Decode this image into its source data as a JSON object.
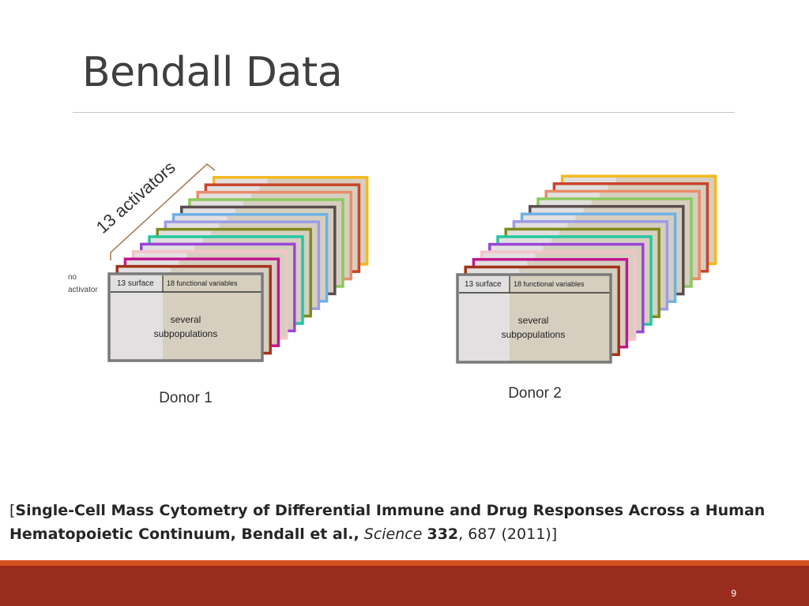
{
  "slide": {
    "title": "Bendall Data",
    "page_number": "9"
  },
  "diagram": {
    "activators_label": "13 activators",
    "no_activator_line1": "no",
    "no_activator_line2": "activator",
    "donor1": {
      "caption": "Donor 1",
      "surface_label": "13 surface",
      "functional_label": "18 functional variables",
      "subpop_line1": "several",
      "subpop_line2": "subpopulations"
    },
    "donor2": {
      "caption": "Donor 2",
      "surface_label": "13 surface",
      "functional_label": "18 functional variables",
      "subpop_line1": "several",
      "subpop_line2": "subpopulations"
    },
    "stack_colors": [
      "#f6b81f",
      "#c8452a",
      "#e98c6a",
      "#8dc85c",
      "#5a4d4d",
      "#6fb0e6",
      "#9c9de6",
      "#7f8a1c",
      "#23c7a0",
      "#9b45d6",
      "#f4c4c9",
      "#c2188f",
      "#a3321a"
    ],
    "front_border_color": "#7a7a7a",
    "surface_fill": "#e2e0e0",
    "functional_fill": "#d6cfc0",
    "brace_color": "#a07850"
  },
  "citation": {
    "open": "[",
    "bold_title": "Single-Cell Mass Cytometry of Differential Immune and Drug Responses Across a Human Hematopoietic Continuum, Bendall et al.,",
    "journal": "Science",
    "volume": "332",
    "rest": ", 687 (2011)]"
  },
  "footer": {
    "stripe_color": "#d5521f",
    "band_color": "#9a2c1e"
  }
}
